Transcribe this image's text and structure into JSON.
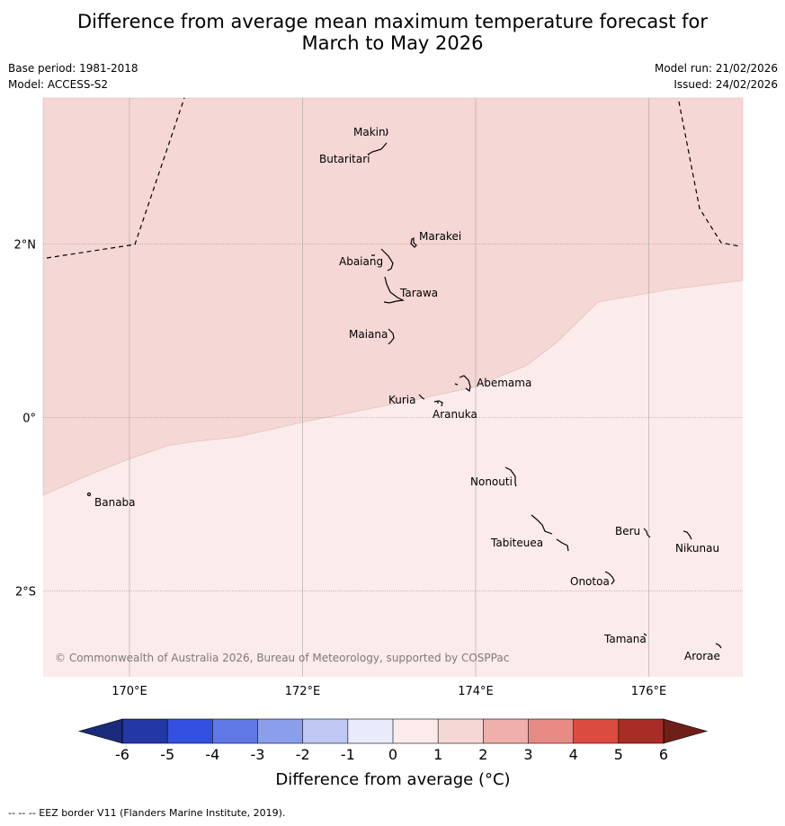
{
  "title": {
    "line1": "Difference from average mean maximum temperature forecast for",
    "line2": "March to May 2026"
  },
  "meta": {
    "base_period": "Base period: 1981-2018",
    "model": "Model: ACCESS-S2",
    "model_run": "Model run: 21/02/2026",
    "issued": "Issued: 24/02/2026"
  },
  "colors": {
    "anomaly_1_2": "#f5d7d5",
    "anomaly_0_1": "#fbebea",
    "gridline": "#999999"
  },
  "map": {
    "lon_range": [
      169.0,
      177.1
    ],
    "lat_range": [
      -3.0,
      3.6
    ],
    "lon_ticks": [
      {
        "value": 170,
        "label": "170°E"
      },
      {
        "value": 172,
        "label": "172°E"
      },
      {
        "value": 174,
        "label": "174°E"
      },
      {
        "value": 176,
        "label": "176°E"
      }
    ],
    "lat_ticks": [
      {
        "value": 2,
        "label": "2°N"
      },
      {
        "value": 0,
        "label": "0°"
      },
      {
        "value": -2,
        "label": "2°S"
      }
    ],
    "places": [
      {
        "name": "Makin",
        "lon": 173.0,
        "lat": 3.3
      },
      {
        "name": "Butaritari",
        "lon": 172.85,
        "lat": 3.05
      },
      {
        "name": "Marakei",
        "lon": 173.3,
        "lat": 2.0
      },
      {
        "name": "Abaiang",
        "lon": 173.0,
        "lat": 1.8
      },
      {
        "name": "Tarawa",
        "lon": 173.1,
        "lat": 1.4
      },
      {
        "name": "Maiana",
        "lon": 173.0,
        "lat": 0.95
      },
      {
        "name": "Abemama",
        "lon": 173.9,
        "lat": 0.4
      },
      {
        "name": "Kuria",
        "lon": 173.4,
        "lat": 0.22
      },
      {
        "name": "Aranuka",
        "lon": 173.6,
        "lat": 0.17
      },
      {
        "name": "Banaba",
        "lon": 169.55,
        "lat": -0.85
      },
      {
        "name": "Nonouti",
        "lon": 174.4,
        "lat": -0.65
      },
      {
        "name": "Beru",
        "lon": 176.0,
        "lat": -1.33
      },
      {
        "name": "Nikunau",
        "lon": 176.45,
        "lat": -1.35
      },
      {
        "name": "Tabiteuea",
        "lon": 174.8,
        "lat": -1.35
      },
      {
        "name": "Onotoa",
        "lon": 175.55,
        "lat": -1.8
      },
      {
        "name": "Tamana",
        "lon": 175.98,
        "lat": -2.5
      },
      {
        "name": "Arorae",
        "lon": 176.8,
        "lat": -2.64
      }
    ],
    "copyright": "© Commonwealth of Australia 2026, Bureau of Meteorology, supported by COSPPac"
  },
  "legend": {
    "ticks": [
      "-6",
      "-5",
      "-4",
      "-3",
      "-2",
      "-1",
      "0",
      "1",
      "2",
      "3",
      "4",
      "5",
      "6"
    ],
    "colors": [
      "#2437a6",
      "#3350e0",
      "#5f78e6",
      "#8a9eec",
      "#c0c8f4",
      "#e7ebfb",
      "#fbebea",
      "#f5d7d5",
      "#efb0ab",
      "#e78a83",
      "#dc4b3f",
      "#a92d27"
    ],
    "low_extend_color": "#1c2a7a",
    "high_extend_color": "#6e1f18",
    "label": "Difference from average (°C)"
  },
  "footer": "--  --  -- EEZ border V11 (Flanders Marine Institute, 2019)."
}
